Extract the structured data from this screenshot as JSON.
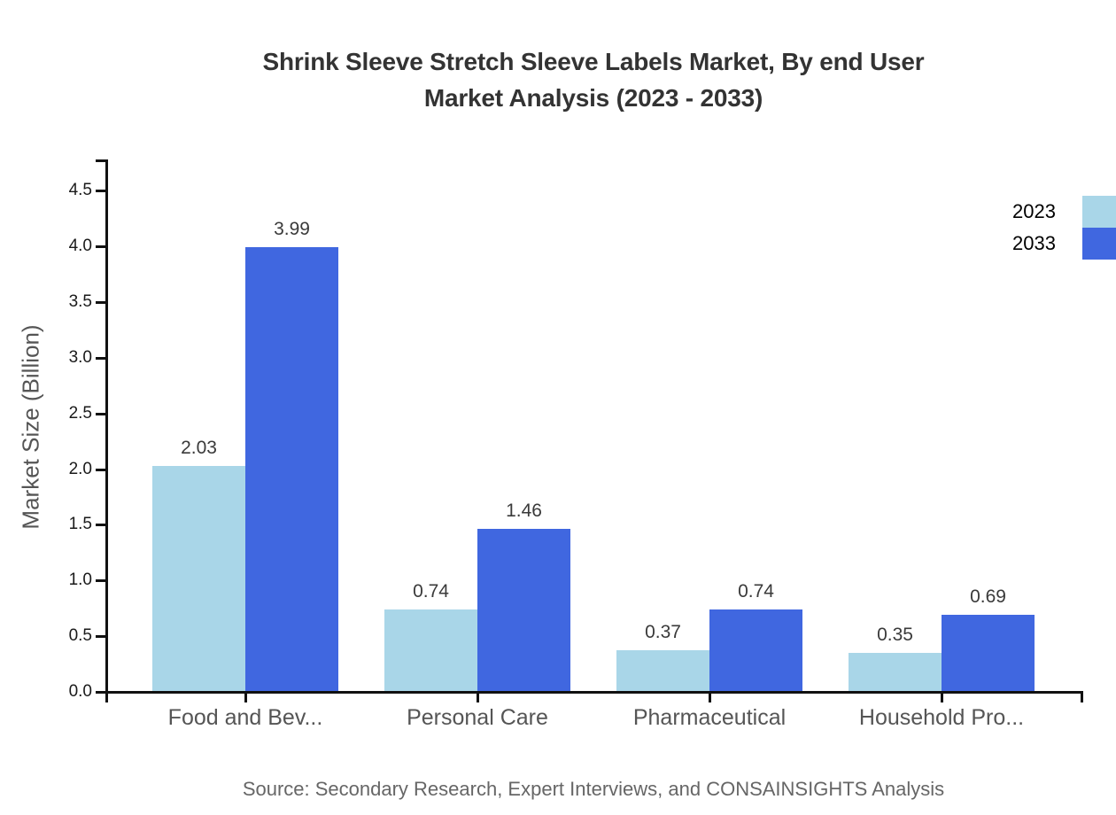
{
  "title": {
    "line1": "Shrink Sleeve Stretch Sleeve Labels Market, By end User",
    "line2": "Market Analysis (2023 - 2033)"
  },
  "legend": [
    {
      "label": "2023",
      "color": "#a9d6e8"
    },
    {
      "label": "2033",
      "color": "#4067e0"
    }
  ],
  "source_note": "Source: Secondary Research, Expert Interviews, and CONSAINSIGHTS Analysis",
  "chart_data": {
    "type": "bar",
    "title": "Shrink Sleeve Stretch Sleeve Labels Market, By end User Market Analysis (2023 - 2033)",
    "categories": [
      "Food and Bev...",
      "Personal Care",
      "Pharmaceutical",
      "Household Pro..."
    ],
    "series": [
      {
        "name": "2023",
        "color": "#a9d6e8",
        "values": [
          2.03,
          0.74,
          0.37,
          0.35
        ]
      },
      {
        "name": "2033",
        "color": "#4067e0",
        "values": [
          3.99,
          1.46,
          0.74,
          0.69
        ]
      }
    ],
    "xlabel": "",
    "ylabel": "Market Size (Billion)",
    "ylim": [
      0,
      4.5
    ],
    "ytick_step": 0.5,
    "yticks": [
      "0.0",
      "0.5",
      "1.0",
      "1.5",
      "2.0",
      "2.5",
      "3.0",
      "3.5",
      "4.0",
      "4.5"
    ],
    "grid": false,
    "legend_position": "top-right",
    "value_label_decimals": 2
  },
  "colors": {
    "axis": "#111111",
    "title_text": "#333333",
    "tick_text": "#1a1a1a",
    "category_text": "#555555",
    "value_text": "#3a3a3a",
    "axis_title_text": "#555555",
    "source_text": "#666666",
    "legend_text": "#000000"
  }
}
